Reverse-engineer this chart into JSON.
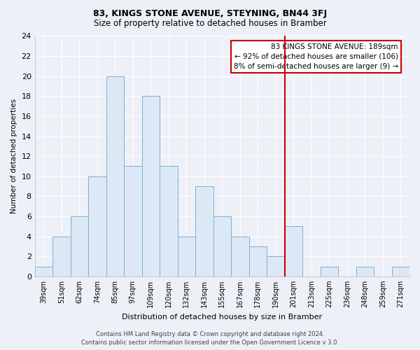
{
  "title": "83, KINGS STONE AVENUE, STEYNING, BN44 3FJ",
  "subtitle": "Size of property relative to detached houses in Bramber",
  "xlabel": "Distribution of detached houses by size in Bramber",
  "ylabel": "Number of detached properties",
  "footer_line1": "Contains HM Land Registry data © Crown copyright and database right 2024.",
  "footer_line2": "Contains public sector information licensed under the Open Government Licence v 3.0.",
  "bar_labels": [
    "39sqm",
    "51sqm",
    "62sqm",
    "74sqm",
    "85sqm",
    "97sqm",
    "109sqm",
    "120sqm",
    "132sqm",
    "143sqm",
    "155sqm",
    "167sqm",
    "178sqm",
    "190sqm",
    "201sqm",
    "213sqm",
    "225sqm",
    "236sqm",
    "248sqm",
    "259sqm",
    "271sqm"
  ],
  "bar_values": [
    1,
    4,
    6,
    10,
    20,
    11,
    18,
    11,
    4,
    9,
    6,
    4,
    3,
    2,
    5,
    0,
    1,
    0,
    1,
    0,
    1
  ],
  "bar_color": "#dce8f5",
  "bar_edge_color": "#7bafd4",
  "highlight_line_index": 13,
  "highlight_line_color": "#cc0000",
  "ann_line1": "83 KINGS STONE AVENUE: 189sqm",
  "ann_line2": "← 92% of detached houses are smaller (106)",
  "ann_line3": "8% of semi-detached houses are larger (9) →",
  "ylim": [
    0,
    24
  ],
  "yticks": [
    0,
    2,
    4,
    6,
    8,
    10,
    12,
    14,
    16,
    18,
    20,
    22,
    24
  ],
  "bg_color": "#eef0f8",
  "grid_color": "#ffffff",
  "title_fontsize": 9,
  "subtitle_fontsize": 8.5
}
